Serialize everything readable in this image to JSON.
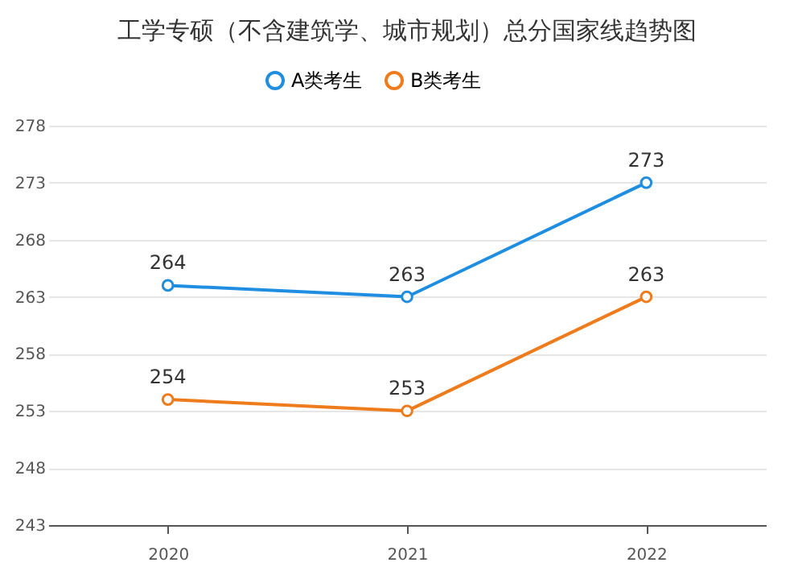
{
  "chart_data": {
    "type": "line",
    "title": "工学专硕（不含建筑学、城市规划）总分国家线趋势图",
    "categories": [
      "2020",
      "2021",
      "2022"
    ],
    "series": [
      {
        "name": "A类考生",
        "color": "#1f8ee0",
        "values": [
          264,
          263,
          273
        ]
      },
      {
        "name": "B类考生",
        "color": "#ee7b1c",
        "values": [
          254,
          253,
          263
        ]
      }
    ],
    "ylim": [
      243,
      278
    ],
    "yticks": [
      243,
      248,
      253,
      258,
      263,
      268,
      273,
      278
    ],
    "grid": "y",
    "legend": "top",
    "marker": "circle",
    "line_style": "solid",
    "data_labels": true
  }
}
